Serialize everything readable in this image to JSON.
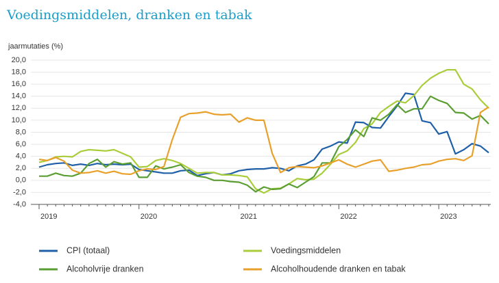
{
  "chart_data": {
    "type": "line",
    "title": "Voedingsmiddelen, dranken en tabak",
    "y_label": "jaarmutaties (%)",
    "categories": [
      "2019",
      null,
      null,
      null,
      null,
      null,
      null,
      null,
      null,
      null,
      null,
      null,
      "2020",
      null,
      null,
      null,
      null,
      null,
      null,
      null,
      null,
      null,
      null,
      null,
      "2021",
      null,
      null,
      null,
      null,
      null,
      null,
      null,
      null,
      null,
      null,
      null,
      "2022",
      null,
      null,
      null,
      null,
      null,
      null,
      null,
      null,
      null,
      null,
      null,
      "2023",
      null,
      null,
      null,
      null,
      null,
      null
    ],
    "series": [
      {
        "name": "CPI (totaal)",
        "color": "#1f5fa8",
        "values": [
          2.2,
          2.6,
          2.8,
          2.9,
          2.5,
          2.7,
          2.5,
          2.8,
          2.6,
          2.7,
          2.6,
          2.7,
          1.8,
          1.6,
          1.4,
          1.2,
          1.2,
          1.6,
          1.7,
          0.8,
          1.1,
          1.3,
          0.9,
          1.1,
          1.6,
          1.8,
          1.9,
          1.9,
          2.1,
          2.0,
          1.6,
          2.4,
          2.7,
          3.4,
          5.2,
          5.7,
          6.4,
          6.2,
          9.7,
          9.6,
          8.8,
          8.7,
          10.6,
          12.4,
          14.5,
          14.3,
          9.9,
          9.6,
          7.7,
          8.1,
          4.4,
          5.1,
          6.1,
          5.7,
          4.6
        ]
      },
      {
        "name": "Voedingsmiddelen",
        "color": "#a9cd3a",
        "values": [
          3.0,
          3.3,
          3.9,
          4.0,
          3.9,
          4.8,
          5.1,
          5.0,
          4.9,
          5.1,
          4.5,
          3.9,
          2.2,
          2.3,
          3.3,
          3.6,
          3.3,
          2.8,
          2.0,
          1.2,
          1.3,
          1.3,
          0.9,
          0.9,
          0.8,
          0.6,
          -1.4,
          -2.1,
          -1.4,
          -1.3,
          -0.6,
          0.3,
          0.1,
          0.2,
          1.2,
          2.7,
          4.3,
          4.9,
          6.3,
          8.6,
          9.4,
          11.3,
          12.3,
          13.2,
          12.9,
          14.1,
          15.8,
          17.0,
          17.8,
          18.4,
          18.4,
          16.0,
          15.2,
          13.4,
          12.0
        ]
      },
      {
        "name": "Alcoholvrije dranken",
        "color": "#5a9e32",
        "values": [
          0.7,
          0.7,
          1.2,
          0.8,
          0.7,
          1.2,
          2.8,
          3.5,
          2.2,
          3.1,
          2.7,
          2.9,
          0.5,
          0.5,
          2.4,
          1.9,
          2.2,
          2.6,
          1.3,
          0.7,
          0.5,
          0.0,
          0.0,
          -0.2,
          -0.3,
          -0.8,
          -1.9,
          -1.1,
          -1.5,
          -1.4,
          -0.6,
          -1.2,
          -0.3,
          0.6,
          2.9,
          2.9,
          5.6,
          6.8,
          8.4,
          7.3,
          10.4,
          10.0,
          11.0,
          12.6,
          11.3,
          11.9,
          11.9,
          14.0,
          13.3,
          12.8,
          11.3,
          11.2,
          10.2,
          10.8,
          9.4
        ]
      },
      {
        "name": "Alcoholhoudende dranken en tabak",
        "color": "#e8a02a",
        "values": [
          3.5,
          3.3,
          3.8,
          3.2,
          1.7,
          1.2,
          1.3,
          1.6,
          1.2,
          1.5,
          1.1,
          1.0,
          1.6,
          1.9,
          1.8,
          2.3,
          6.8,
          10.5,
          11.1,
          11.2,
          11.4,
          11.0,
          10.9,
          11.0,
          9.7,
          10.4,
          10.0,
          10.0,
          4.5,
          1.3,
          2.1,
          2.3,
          2.2,
          2.1,
          2.4,
          2.9,
          3.4,
          2.7,
          2.2,
          2.7,
          3.2,
          3.4,
          1.5,
          1.7,
          2.0,
          2.2,
          2.6,
          2.7,
          3.2,
          3.5,
          3.6,
          3.3,
          4.1,
          11.3,
          12.2
        ]
      }
    ],
    "ylim": [
      -4,
      20
    ],
    "yticks": [
      {
        "value": -4,
        "label": "-4,0"
      },
      {
        "value": -2,
        "label": "-2,0"
      },
      {
        "value": 0,
        "label": "0,0"
      },
      {
        "value": 2,
        "label": "2,0"
      },
      {
        "value": 4,
        "label": "4,0"
      },
      {
        "value": 6,
        "label": "6,0"
      },
      {
        "value": 8,
        "label": "8,0"
      },
      {
        "value": 10,
        "label": "10,0"
      },
      {
        "value": 12,
        "label": "12,0"
      },
      {
        "value": 14,
        "label": "14,0"
      },
      {
        "value": 16,
        "label": "16,0"
      },
      {
        "value": 18,
        "label": "18,0"
      },
      {
        "value": 20,
        "label": "20,0"
      }
    ],
    "grid": true
  }
}
